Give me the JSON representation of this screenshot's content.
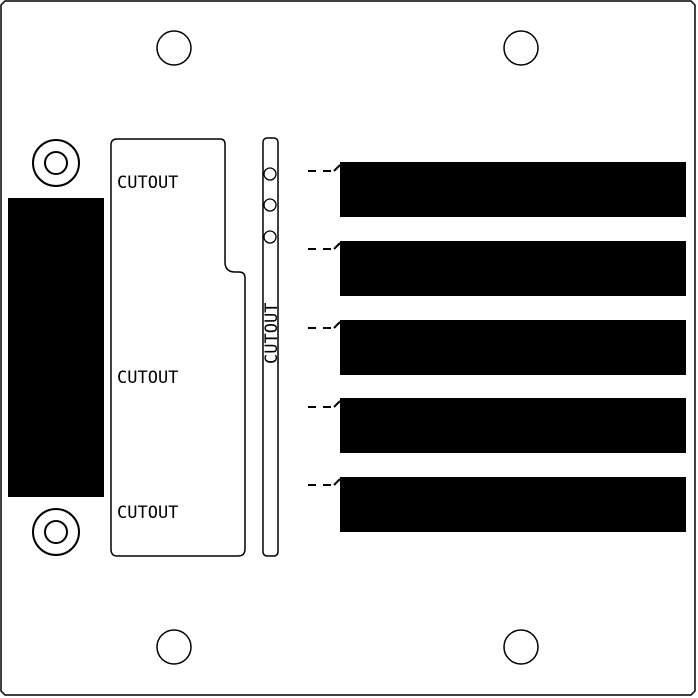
{
  "panel": {
    "labels": {
      "upper_cutout": "CUTOUT",
      "middle_cutout": "CUTOUT",
      "lower_cutout": "CUTOUT",
      "vertical_cutout": "CUTOUT"
    },
    "colors": {
      "outline": "#000000",
      "fill": "#ffffff",
      "solid": "#000000"
    }
  }
}
